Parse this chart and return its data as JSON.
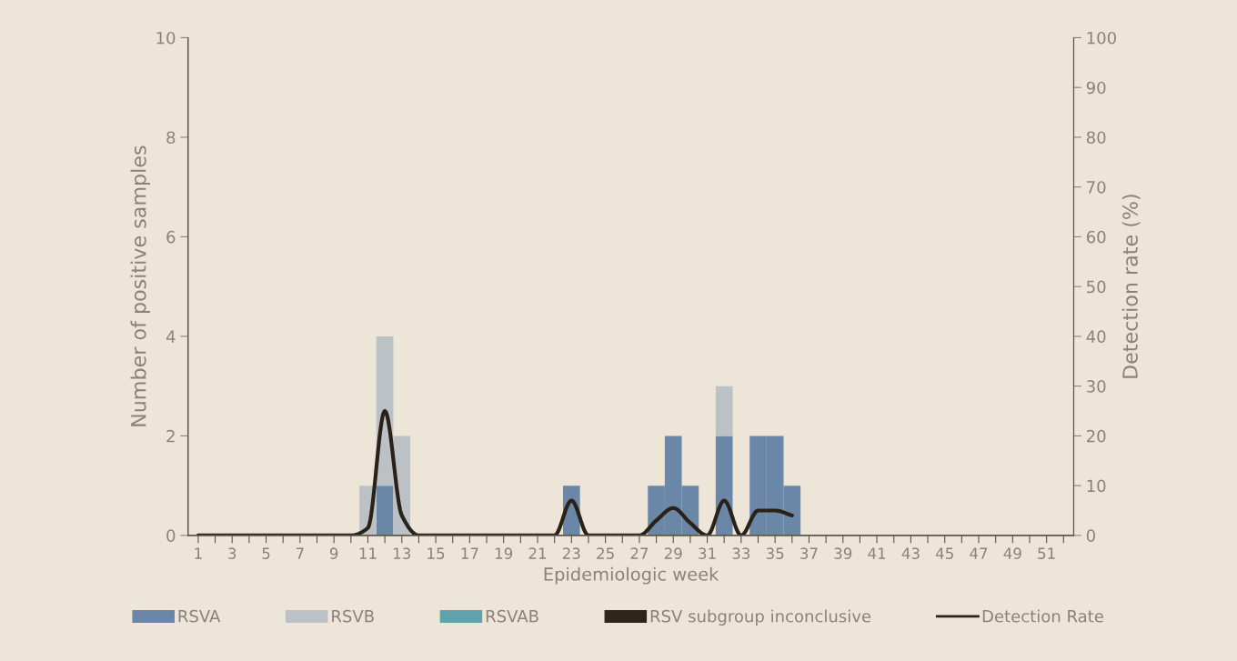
{
  "chart_data": {
    "type": "bar",
    "stacked": true,
    "xlabel": "Epidemiologic week",
    "ylabel": "Number of positive samples",
    "y2label": "Detection rate (%)",
    "categories": [
      "1",
      null,
      "3",
      null,
      "5",
      null,
      "7",
      null,
      "9",
      null,
      "11",
      null,
      "13",
      null,
      "15",
      null,
      "17",
      null,
      "19",
      null,
      "21",
      null,
      "23",
      null,
      "25",
      null,
      "27",
      null,
      "29",
      null,
      "31",
      null,
      "33",
      null,
      "35",
      null,
      "37",
      null,
      "39",
      null,
      "41",
      null,
      "43",
      null,
      "45",
      null,
      "47",
      null,
      "49",
      null,
      "51",
      null
    ],
    "series": [
      {
        "name": "RSVA",
        "color": "#6a87a8",
        "values": [
          0,
          0,
          0,
          0,
          0,
          0,
          0,
          0,
          0,
          0,
          0,
          1,
          0,
          0,
          0,
          0,
          0,
          0,
          0,
          0,
          0,
          0,
          1,
          0,
          0,
          0,
          0,
          1,
          2,
          1,
          0,
          2,
          0,
          2,
          2,
          1,
          0,
          0,
          0,
          0,
          0,
          0,
          0,
          0,
          0,
          0,
          0,
          0,
          0,
          0,
          0,
          0
        ]
      },
      {
        "name": "RSVB",
        "color": "#bcc1c6",
        "values": [
          0,
          0,
          0,
          0,
          0,
          0,
          0,
          0,
          0,
          0,
          1,
          3,
          2,
          0,
          0,
          0,
          0,
          0,
          0,
          0,
          0,
          0,
          0,
          0,
          0,
          0,
          0,
          0,
          0,
          0,
          0,
          1,
          0,
          0,
          0,
          0,
          0,
          0,
          0,
          0,
          0,
          0,
          0,
          0,
          0,
          0,
          0,
          0,
          0,
          0,
          0,
          0
        ]
      },
      {
        "name": "RSVAB",
        "color": "#5fa3ad",
        "values": [
          0,
          0,
          0,
          0,
          0,
          0,
          0,
          0,
          0,
          0,
          0,
          0,
          0,
          0,
          0,
          0,
          0,
          0,
          0,
          0,
          0,
          0,
          0,
          0,
          0,
          0,
          0,
          0,
          0,
          0,
          0,
          0,
          0,
          0,
          0,
          0,
          0,
          0,
          0,
          0,
          0,
          0,
          0,
          0,
          0,
          0,
          0,
          0,
          0,
          0,
          0,
          0
        ]
      },
      {
        "name": "RSV subgroup inconclusive",
        "color": "#2e2619",
        "values": [
          0,
          0,
          0,
          0,
          0,
          0,
          0,
          0,
          0,
          0,
          0,
          0,
          0,
          0,
          0,
          0,
          0,
          0,
          0,
          0,
          0,
          0,
          0,
          0,
          0,
          0,
          0,
          0,
          0,
          0,
          0,
          0,
          0,
          0,
          0,
          0,
          0,
          0,
          0,
          0,
          0,
          0,
          0,
          0,
          0,
          0,
          0,
          0,
          0,
          0,
          0,
          0
        ]
      },
      {
        "name": "Detection Rate",
        "type": "line",
        "axis": "y2",
        "color": "#2a2218",
        "values": [
          0,
          0,
          0,
          0,
          0,
          0,
          0,
          0,
          0,
          0,
          1.5,
          25,
          4,
          0,
          0,
          0,
          0,
          0,
          0,
          0,
          0,
          0,
          7,
          0,
          0,
          0,
          0,
          3,
          5.5,
          2.5,
          0,
          7,
          0,
          5,
          5,
          4,
          null,
          null,
          null,
          null,
          null,
          null,
          null,
          null,
          null,
          null,
          null,
          null,
          null,
          null,
          null,
          null
        ]
      }
    ],
    "ylim": [
      0,
      10
    ],
    "yticks": [
      0,
      2,
      4,
      6,
      8,
      10
    ],
    "y2lim": [
      0,
      100
    ],
    "y2ticks": [
      0,
      10,
      20,
      30,
      40,
      50,
      60,
      70,
      80,
      90,
      100
    ],
    "grid": false,
    "legend": "bottom"
  }
}
